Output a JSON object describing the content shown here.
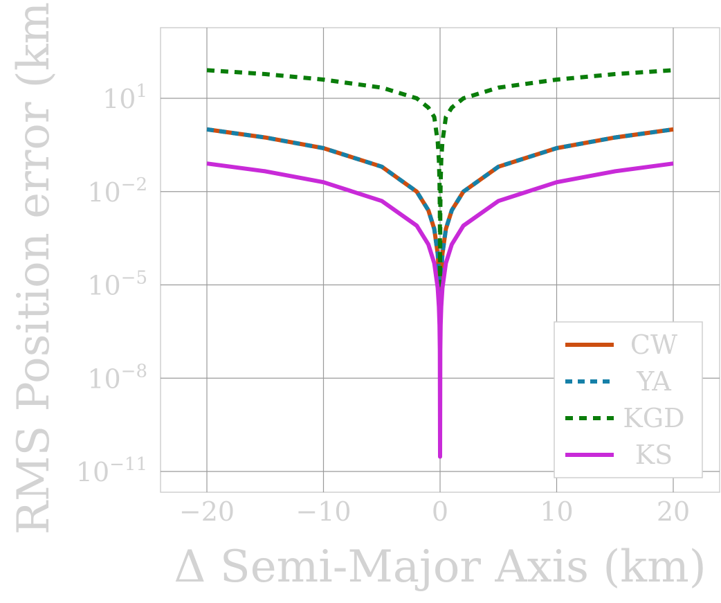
{
  "chart_data": {
    "type": "line",
    "title": "",
    "xlabel": "Δ Semi-Major Axis (km)",
    "ylabel": "RMS Position error (km)",
    "y_scale": "log",
    "xlim": [
      -24,
      24
    ],
    "ylim_log10": [
      -11.7,
      3.2
    ],
    "x_ticks": [
      -20,
      -10,
      0,
      10,
      20
    ],
    "x_tick_labels": [
      "−20",
      "−10",
      "0",
      "10",
      "20"
    ],
    "y_ticks_log10": [
      1,
      -2,
      -5,
      -8,
      -11
    ],
    "y_tick_labels": [
      {
        "base": "10",
        "exp": "1"
      },
      {
        "base": "10",
        "exp": "−2"
      },
      {
        "base": "10",
        "exp": "−5"
      },
      {
        "base": "10",
        "exp": "−8"
      },
      {
        "base": "10",
        "exp": "−11"
      }
    ],
    "grid": true,
    "legend_position": "lower-right",
    "x": [
      -20,
      -15,
      -10,
      -5,
      -2,
      -1,
      -0.5,
      -0.2,
      -0.1,
      -0.05,
      -0.02,
      0,
      0.02,
      0.05,
      0.1,
      0.2,
      0.5,
      1,
      2,
      5,
      10,
      15,
      20
    ],
    "series": [
      {
        "name": "CW",
        "color": "#cc4e10",
        "dash": "solid",
        "y": [
          1.0,
          0.55,
          0.25,
          0.063,
          0.01,
          0.0025,
          0.00063,
          0.0001,
          2.5e-05,
          1e-05,
          3.2e-06,
          null,
          3.2e-06,
          1e-05,
          2.5e-05,
          0.0001,
          0.00063,
          0.0025,
          0.01,
          0.063,
          0.25,
          0.55,
          1.0
        ]
      },
      {
        "name": "YA",
        "color": "#1680a8",
        "dash": "dotted",
        "y": [
          1.0,
          0.55,
          0.25,
          0.063,
          0.01,
          0.0025,
          0.00063,
          0.0001,
          2.5e-05,
          1e-05,
          3.2e-06,
          null,
          3.2e-06,
          1e-05,
          2.5e-05,
          0.0001,
          0.00063,
          0.0025,
          0.01,
          0.063,
          0.25,
          0.55,
          1.0
        ]
      },
      {
        "name": "KGD",
        "color": "#0a7d0a",
        "dash": "dashed",
        "y": [
          80,
          60,
          40,
          22,
          10,
          5,
          2.5,
          0.4,
          0.1,
          0.02,
          0.002,
          1e-05,
          0.002,
          0.02,
          0.1,
          0.4,
          2.5,
          5,
          10,
          22,
          40,
          60,
          80
        ]
      },
      {
        "name": "KS",
        "color": "#c82ad8",
        "dash": "solid",
        "y": [
          0.08,
          0.045,
          0.02,
          0.005,
          0.0008,
          0.0002,
          5e-05,
          8e-06,
          2e-06,
          5e-07,
          8e-08,
          3e-11,
          8e-08,
          5e-07,
          2e-06,
          8e-06,
          5e-05,
          0.0002,
          0.0008,
          0.005,
          0.02,
          0.045,
          0.08
        ]
      }
    ]
  }
}
